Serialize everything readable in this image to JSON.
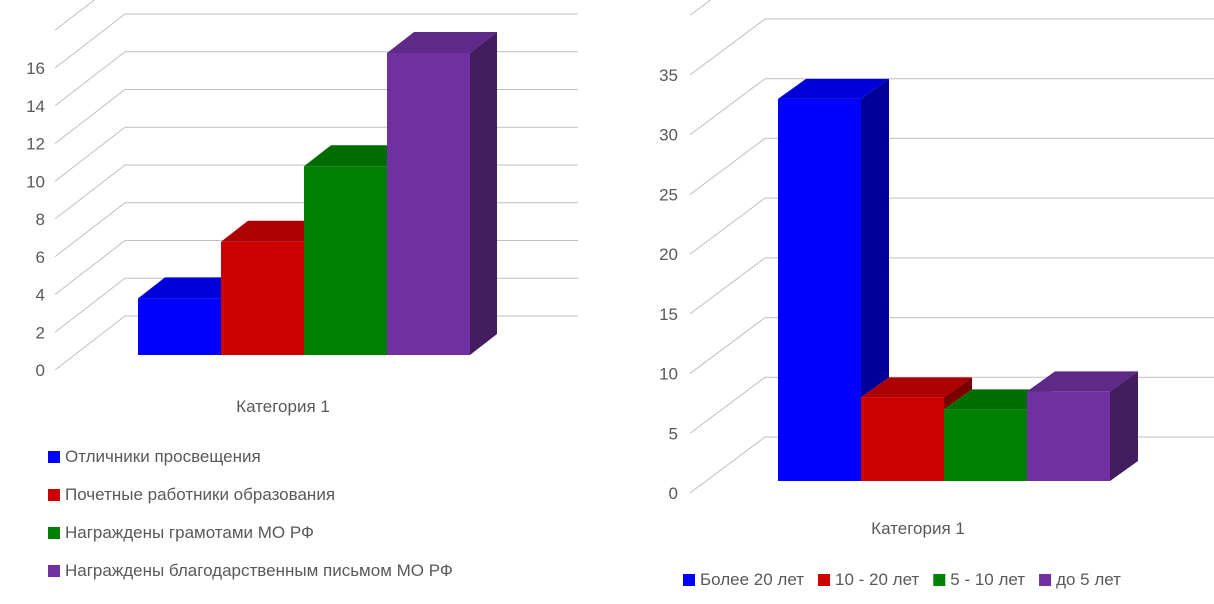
{
  "chart_data": [
    {
      "type": "bar",
      "categories": [
        "Категория 1"
      ],
      "series": [
        {
          "name": "Отличники просвещения",
          "values": [
            3
          ],
          "color": "#0000ff"
        },
        {
          "name": "Почетные работники образования",
          "values": [
            6
          ],
          "color": "#cc0000"
        },
        {
          "name": "Награждены грамотами МО РФ",
          "values": [
            10
          ],
          "color": "#008000"
        },
        {
          "name": "Награждены благодарственным письмом МО РФ",
          "values": [
            16
          ],
          "color": "#7030a0"
        }
      ],
      "yticks": [
        "0",
        "2",
        "4",
        "6",
        "8",
        "10",
        "12",
        "14",
        "16"
      ],
      "ylim": [
        0,
        16
      ],
      "grid": true,
      "legend": "bottom-left"
    },
    {
      "type": "bar",
      "categories": [
        "Категория 1"
      ],
      "series": [
        {
          "name": "Более 20 лет",
          "values": [
            32
          ],
          "color": "#0000ff"
        },
        {
          "name": "10 - 20 лет",
          "values": [
            7
          ],
          "color": "#cc0000"
        },
        {
          "name": "5 - 10 лет",
          "values": [
            6
          ],
          "color": "#008000"
        },
        {
          "name": "до 5 лет",
          "values": [
            7.5
          ],
          "color": "#7030a0"
        }
      ],
      "yticks": [
        "0",
        "5",
        "10",
        "15",
        "20",
        "25",
        "30",
        "35"
      ],
      "ylim": [
        0,
        35
      ],
      "grid": true,
      "legend": "bottom"
    }
  ]
}
